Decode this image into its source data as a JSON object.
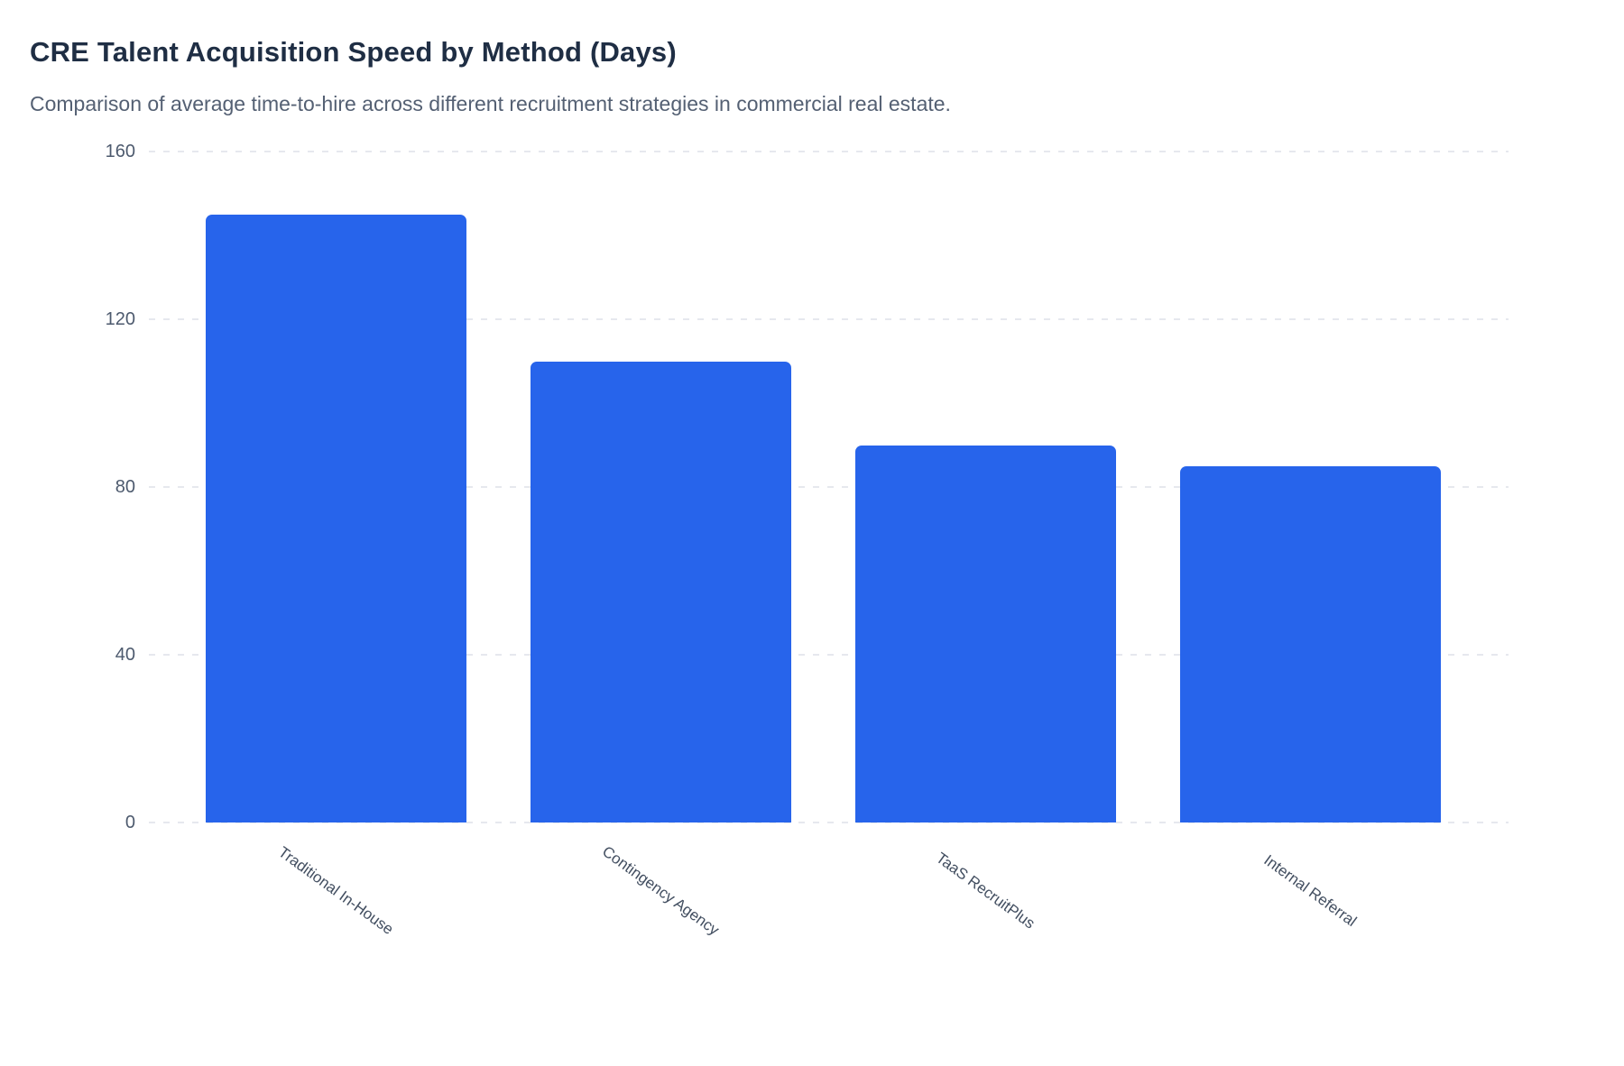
{
  "header": {
    "title": "CRE Talent Acquisition Speed by Method (Days)",
    "subtitle": "Comparison of average time-to-hire across different recruitment strategies in commercial real estate."
  },
  "chart_data": {
    "type": "bar",
    "title": "CRE Talent Acquisition Speed by Method (Days)",
    "subtitle": "Comparison of average time-to-hire across different recruitment strategies in commercial real estate.",
    "categories": [
      "Traditional In-House",
      "Contingency Agency",
      "TaaS RecruitPlus",
      "Internal Referral"
    ],
    "values": [
      145,
      110,
      90,
      85
    ],
    "xlabel": "",
    "ylabel": "",
    "ylim": [
      0,
      160
    ],
    "yticks": [
      0,
      40,
      80,
      120,
      160
    ],
    "grid": "horizontal-dashed",
    "legend": false,
    "x_label_rotation_deg": 36,
    "colors": {
      "bar": "#2764eb",
      "title": "#1f2e44",
      "subtitle": "#546073",
      "tick_label": "#4d5a6e",
      "x_label": "#424e60",
      "gridline": "#e6e8ee",
      "background": "#ffffff"
    }
  }
}
